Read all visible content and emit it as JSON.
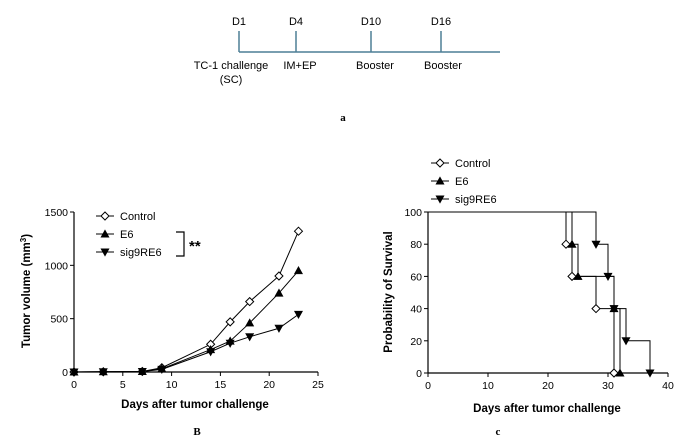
{
  "timeline": {
    "days": [
      {
        "label": "D1",
        "event": "TC-1 challenge",
        "event2": "(SC)"
      },
      {
        "label": "D4",
        "event": "IM+EP",
        "event2": ""
      },
      {
        "label": "D10",
        "event": "Booster",
        "event2": ""
      },
      {
        "label": "D16",
        "event": "Booster",
        "event2": ""
      }
    ],
    "panel_label": "a"
  },
  "chart_data": [
    {
      "type": "line",
      "panel_label": "B",
      "title": "",
      "xlabel": "Days after tumor challenge",
      "ylabel_main": "Tumor volume (mm",
      "ylabel_sup": "3",
      "ylabel_end": ")",
      "xlim": [
        0,
        25
      ],
      "ylim": [
        0,
        1500
      ],
      "xticks": [
        "0",
        "5",
        "10",
        "15",
        "20",
        "25"
      ],
      "yticks": [
        "0",
        "500",
        "1000",
        "1500"
      ],
      "legend_position": "top-left",
      "significance": "**",
      "series": [
        {
          "name": "Control",
          "marker": "diamond-open",
          "x": [
            0,
            3,
            7,
            9,
            14,
            16,
            18,
            21,
            23
          ],
          "y": [
            0,
            2,
            5,
            40,
            260,
            470,
            660,
            900,
            1320
          ]
        },
        {
          "name": "E6",
          "marker": "triangle-up",
          "x": [
            0,
            3,
            7,
            9,
            14,
            16,
            18,
            21,
            23
          ],
          "y": [
            0,
            2,
            5,
            30,
            210,
            290,
            460,
            740,
            950
          ]
        },
        {
          "name": "sig9RE6",
          "marker": "triangle-down",
          "x": [
            0,
            3,
            7,
            9,
            14,
            16,
            18,
            21,
            23
          ],
          "y": [
            0,
            2,
            5,
            25,
            190,
            270,
            330,
            410,
            540
          ]
        }
      ]
    },
    {
      "type": "line",
      "step": true,
      "panel_label": "c",
      "title": "",
      "xlabel": "Days after tumor challenge",
      "ylabel": "Probability of Survival",
      "xlim": [
        0,
        40
      ],
      "ylim": [
        0,
        100
      ],
      "xticks": [
        "0",
        "10",
        "20",
        "30",
        "40"
      ],
      "yticks": [
        "0",
        "20",
        "40",
        "60",
        "80",
        "100"
      ],
      "legend_position": "top-left",
      "series": [
        {
          "name": "Control",
          "marker": "diamond-open",
          "x": [
            0,
            23,
            24,
            28,
            31
          ],
          "y": [
            100,
            80,
            60,
            40,
            0
          ]
        },
        {
          "name": "E6",
          "marker": "triangle-up",
          "x": [
            0,
            24,
            25,
            31,
            32
          ],
          "y": [
            100,
            80,
            60,
            40,
            0
          ]
        },
        {
          "name": "sig9RE6",
          "marker": "triangle-down",
          "x": [
            0,
            28,
            30,
            31,
            33,
            37
          ],
          "y": [
            100,
            80,
            60,
            40,
            20,
            0
          ]
        }
      ]
    }
  ]
}
